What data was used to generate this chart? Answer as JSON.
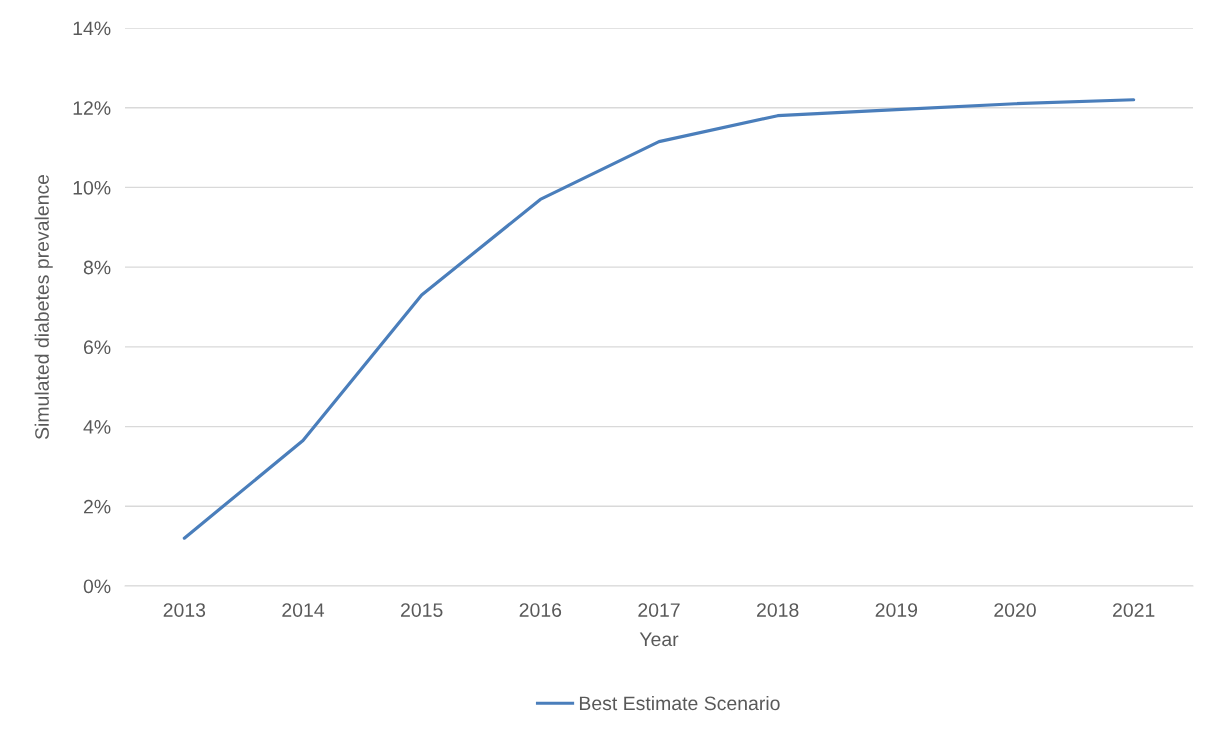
{
  "chart_data": {
    "type": "line",
    "xlabel": "Year",
    "ylabel": "Simulated diabetes prevalence",
    "categories": [
      "2013",
      "2014",
      "2015",
      "2016",
      "2017",
      "2018",
      "2019",
      "2020",
      "2021"
    ],
    "series": [
      {
        "name": "Best Estimate Scenario",
        "color": "#4a7ebb",
        "values": [
          1.2,
          3.65,
          7.3,
          9.7,
          11.15,
          11.8,
          11.95,
          12.1,
          12.2
        ]
      }
    ],
    "ylim": [
      0,
      14
    ],
    "yticks": [
      {
        "value": 0,
        "label": "0%"
      },
      {
        "value": 2,
        "label": "2%"
      },
      {
        "value": 4,
        "label": "4%"
      },
      {
        "value": 6,
        "label": "6%"
      },
      {
        "value": 8,
        "label": "8%"
      },
      {
        "value": 10,
        "label": "10%"
      },
      {
        "value": 12,
        "label": "12%"
      },
      {
        "value": 14,
        "label": "14%"
      }
    ],
    "grid": "y",
    "legend": "bottom",
    "marker": "none",
    "line_style": "solid"
  }
}
